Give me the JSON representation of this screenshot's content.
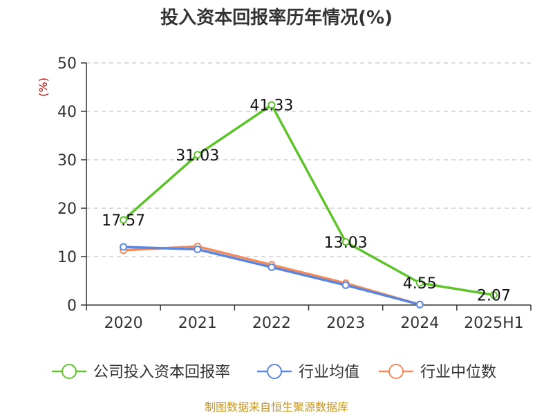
{
  "chart_data": {
    "type": "line",
    "title": "投入资本回报率历年情况(%)",
    "ylabel": "(%)",
    "categories": [
      "2020",
      "2021",
      "2022",
      "2023",
      "2024",
      "2025H1"
    ],
    "yticks": [
      "0",
      "10",
      "20",
      "30",
      "40",
      "50"
    ],
    "ylim": [
      0,
      50
    ],
    "grid": true,
    "legend_position": "bottom",
    "series": [
      {
        "name": "公司投入资本回报率",
        "color": "#5ec22a",
        "values": [
          17.57,
          31.03,
          41.33,
          13.03,
          4.55,
          2.07
        ],
        "labels": [
          "17.57",
          "31.03",
          "41.33",
          "13.03",
          "4.55",
          "2.07"
        ]
      },
      {
        "name": "行业均值",
        "color": "#5b86dd",
        "values": [
          12.0,
          11.5,
          7.8,
          4.1,
          0.1,
          null
        ]
      },
      {
        "name": "行业中位数",
        "color": "#f08b5e",
        "values": [
          11.3,
          12.1,
          8.3,
          4.5,
          0.1,
          null
        ]
      }
    ],
    "source": "制图数据来自恒生聚源数据库"
  }
}
